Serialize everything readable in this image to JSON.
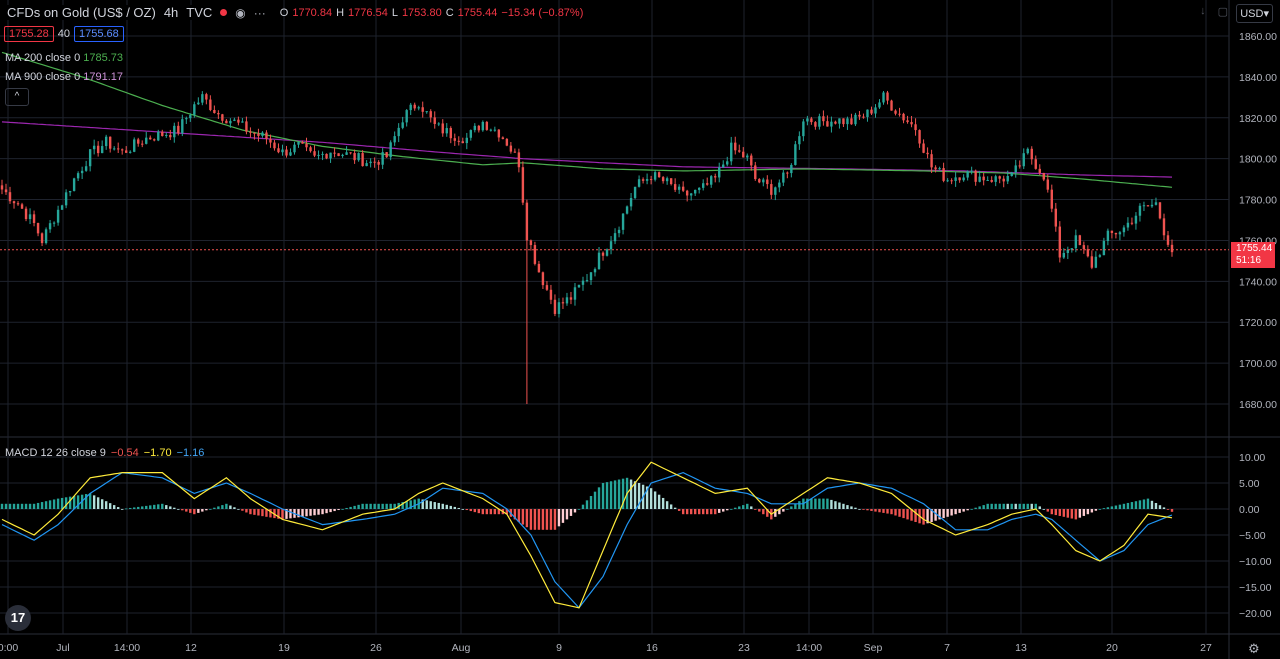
{
  "header": {
    "title": "CFDs on Gold (US$ / OZ)",
    "interval": "4h",
    "source": "TVC",
    "ohlc": [
      {
        "label": "O",
        "value": "1770.84"
      },
      {
        "label": "H",
        "value": "1776.54"
      },
      {
        "label": "L",
        "value": "1753.80"
      },
      {
        "label": "C",
        "value": "1755.44"
      }
    ],
    "change": "−15.34 (−0.87%)",
    "bid": "1755.28",
    "spread": "40",
    "ask": "1755.68",
    "currency": "USD",
    "collapse_glyph": "^"
  },
  "indicators": {
    "ma200": {
      "label": "MA 200 close 0",
      "value": "1785.73"
    },
    "ma900": {
      "label": "MA 900 close 0",
      "value": "1791.17"
    },
    "macd": {
      "label": "MACD 12 26 close 9",
      "hist": "−0.54",
      "macd": "−1.70",
      "signal": "−1.16"
    }
  },
  "last_price": {
    "value": "1755.44",
    "countdown": "51:16"
  },
  "colors": {
    "up": "#26a69a",
    "down": "#ef5350",
    "ma200": "#4caf50",
    "ma900": "#9c27b0",
    "macd": "#2196f3",
    "signal": "#ffeb3b",
    "grid": "#1e222d",
    "axis_text": "#b2b5be"
  },
  "icons": [
    "eye-icon",
    "more-icon",
    "arrow-down-icon",
    "sync-icon",
    "gear-icon",
    "tradingview-logo"
  ],
  "logo": "17",
  "chart_data": [
    {
      "type": "candlestick",
      "y_axis_ticks": [
        "1860.00",
        "1840.00",
        "1820.00",
        "1800.00",
        "1780.00",
        "1760.00",
        "1740.00",
        "1720.00",
        "1700.00",
        "1680.00"
      ],
      "ylim": [
        1672,
        1866
      ],
      "x_tick_labels": [
        "0:00",
        "Jul",
        "14:00",
        "12",
        "19",
        "26",
        "Aug",
        "9",
        "16",
        "23",
        "14:00",
        "Sep",
        "7",
        "13",
        "20",
        "27"
      ],
      "close_path": [
        [
          0,
          1785
        ],
        [
          4,
          1778
        ],
        [
          8,
          1768
        ],
        [
          10,
          1760
        ],
        [
          14,
          1775
        ],
        [
          18,
          1790
        ],
        [
          22,
          1802
        ],
        [
          26,
          1808
        ],
        [
          30,
          1803
        ],
        [
          36,
          1810
        ],
        [
          40,
          1812
        ],
        [
          44,
          1814
        ],
        [
          48,
          1826
        ],
        [
          50,
          1830
        ],
        [
          54,
          1822
        ],
        [
          58,
          1818
        ],
        [
          62,
          1813
        ],
        [
          66,
          1810
        ],
        [
          70,
          1803
        ],
        [
          74,
          1806
        ],
        [
          78,
          1800
        ],
        [
          82,
          1804
        ],
        [
          86,
          1802
        ],
        [
          92,
          1798
        ],
        [
          96,
          1801
        ],
        [
          100,
          1820
        ],
        [
          104,
          1828
        ],
        [
          108,
          1816
        ],
        [
          112,
          1812
        ],
        [
          116,
          1810
        ],
        [
          120,
          1818
        ],
        [
          124,
          1813
        ],
        [
          126,
          1808
        ],
        [
          129,
          1798
        ],
        [
          131,
          1763
        ],
        [
          134,
          1745
        ],
        [
          138,
          1727
        ],
        [
          142,
          1732
        ],
        [
          146,
          1742
        ],
        [
          150,
          1755
        ],
        [
          154,
          1768
        ],
        [
          158,
          1786
        ],
        [
          162,
          1792
        ],
        [
          166,
          1788
        ],
        [
          170,
          1782
        ],
        [
          174,
          1784
        ],
        [
          178,
          1790
        ],
        [
          182,
          1805
        ],
        [
          186,
          1800
        ],
        [
          188,
          1790
        ],
        [
          192,
          1785
        ],
        [
          196,
          1792
        ],
        [
          200,
          1820
        ],
        [
          204,
          1818
        ],
        [
          208,
          1819
        ],
        [
          212,
          1818
        ],
        [
          216,
          1822
        ],
        [
          220,
          1830
        ],
        [
          224,
          1822
        ],
        [
          228,
          1815
        ],
        [
          232,
          1796
        ],
        [
          236,
          1790
        ],
        [
          240,
          1793
        ],
        [
          244,
          1791
        ],
        [
          248,
          1790
        ],
        [
          252,
          1791
        ],
        [
          256,
          1803
        ],
        [
          260,
          1792
        ],
        [
          262,
          1775
        ],
        [
          264,
          1753
        ],
        [
          268,
          1760
        ],
        [
          272,
          1748
        ],
        [
          276,
          1762
        ],
        [
          280,
          1766
        ],
        [
          284,
          1775
        ],
        [
          288,
          1778
        ],
        [
          290,
          1765
        ],
        [
          292,
          1755
        ]
      ],
      "ma200": [
        [
          0,
          1852
        ],
        [
          20,
          1840
        ],
        [
          40,
          1826
        ],
        [
          60,
          1814
        ],
        [
          80,
          1806
        ],
        [
          100,
          1801
        ],
        [
          120,
          1797
        ],
        [
          130,
          1798
        ],
        [
          150,
          1795
        ],
        [
          170,
          1794
        ],
        [
          200,
          1795
        ],
        [
          230,
          1794
        ],
        [
          250,
          1793
        ],
        [
          270,
          1790
        ],
        [
          292,
          1786
        ]
      ],
      "ma900": [
        [
          0,
          1818
        ],
        [
          40,
          1813
        ],
        [
          80,
          1808
        ],
        [
          110,
          1803
        ],
        [
          130,
          1800
        ],
        [
          170,
          1796
        ],
        [
          210,
          1795
        ],
        [
          240,
          1794
        ],
        [
          270,
          1792
        ],
        [
          292,
          1791
        ]
      ],
      "last_value": 1755.44
    },
    {
      "type": "macd",
      "y_axis_ticks": [
        "10.00",
        "5.00",
        "0.00",
        "−5.00",
        "−10.00",
        "−15.00",
        "−20.00"
      ],
      "ylim": [
        -23.5,
        11.5
      ],
      "macd": [
        [
          0,
          -2
        ],
        [
          8,
          -5
        ],
        [
          14,
          -1
        ],
        [
          22,
          6
        ],
        [
          30,
          7
        ],
        [
          40,
          7
        ],
        [
          48,
          2
        ],
        [
          56,
          6
        ],
        [
          62,
          2
        ],
        [
          70,
          -2
        ],
        [
          80,
          -4
        ],
        [
          90,
          -1
        ],
        [
          98,
          0
        ],
        [
          104,
          3
        ],
        [
          110,
          5
        ],
        [
          120,
          2
        ],
        [
          126,
          -1
        ],
        [
          132,
          -9
        ],
        [
          138,
          -18
        ],
        [
          144,
          -19
        ],
        [
          150,
          -8
        ],
        [
          156,
          3
        ],
        [
          162,
          9
        ],
        [
          170,
          6
        ],
        [
          178,
          3
        ],
        [
          186,
          4
        ],
        [
          192,
          -1
        ],
        [
          200,
          3
        ],
        [
          206,
          6
        ],
        [
          214,
          5
        ],
        [
          222,
          3
        ],
        [
          230,
          -2
        ],
        [
          238,
          -5
        ],
        [
          246,
          -3
        ],
        [
          252,
          -1
        ],
        [
          258,
          0
        ],
        [
          262,
          -3
        ],
        [
          268,
          -8
        ],
        [
          274,
          -10
        ],
        [
          280,
          -7
        ],
        [
          286,
          -1
        ],
        [
          292,
          -1.7
        ]
      ],
      "signal": [
        [
          0,
          -3
        ],
        [
          8,
          -6
        ],
        [
          14,
          -3
        ],
        [
          22,
          3
        ],
        [
          30,
          7
        ],
        [
          40,
          6
        ],
        [
          48,
          3
        ],
        [
          56,
          5
        ],
        [
          62,
          3
        ],
        [
          70,
          0
        ],
        [
          80,
          -3
        ],
        [
          90,
          -2
        ],
        [
          98,
          -1
        ],
        [
          104,
          1
        ],
        [
          110,
          4
        ],
        [
          120,
          3
        ],
        [
          126,
          0
        ],
        [
          132,
          -5
        ],
        [
          138,
          -14
        ],
        [
          144,
          -19
        ],
        [
          150,
          -13
        ],
        [
          156,
          -3
        ],
        [
          162,
          5
        ],
        [
          170,
          7
        ],
        [
          178,
          4
        ],
        [
          186,
          3
        ],
        [
          192,
          1
        ],
        [
          200,
          1
        ],
        [
          206,
          4
        ],
        [
          214,
          5
        ],
        [
          222,
          4
        ],
        [
          230,
          1
        ],
        [
          238,
          -4
        ],
        [
          246,
          -4
        ],
        [
          252,
          -2
        ],
        [
          258,
          -1
        ],
        [
          262,
          -2
        ],
        [
          268,
          -6
        ],
        [
          274,
          -10
        ],
        [
          280,
          -8
        ],
        [
          286,
          -3
        ],
        [
          292,
          -1.16
        ]
      ]
    }
  ]
}
